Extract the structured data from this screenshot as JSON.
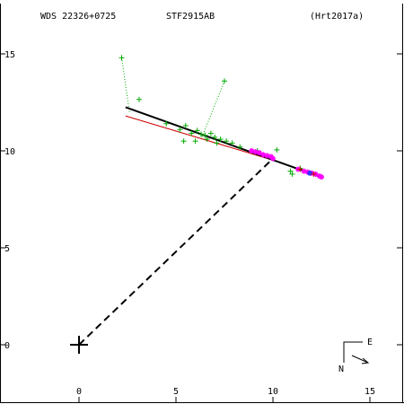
{
  "header": {
    "wds_id": "WDS 22326+0725",
    "discoverer": "STF2915AB",
    "reference": "(Hrt2017a)"
  },
  "compass": {
    "east_label": "E",
    "north_label": "N"
  },
  "colors": {
    "background": "#ffffff",
    "axes": "#000000",
    "orbit": "#000000",
    "alt_orbit": "#cc0000",
    "visual_obs": "#00aa00",
    "speckle_obs": "#ff00ff",
    "other_obs": "#3333ff",
    "residual_line": "#00aa00"
  },
  "chart_data": {
    "type": "scatter",
    "title": "",
    "xlabel": "",
    "ylabel": "",
    "xlim": [
      -4,
      17
    ],
    "ylim": [
      -3,
      17.5
    ],
    "x_tick_values": [
      0,
      5,
      10,
      15
    ],
    "x_tick_labels": [
      "0",
      "5",
      "10",
      "15"
    ],
    "y_tick_values": [
      0,
      5,
      10,
      15
    ],
    "y_tick_labels": [
      "0",
      "5",
      "10",
      "15"
    ],
    "primary": [
      0,
      0
    ],
    "orbit_line": [
      [
        2.4,
        12.25
      ],
      [
        12.6,
        8.6
      ]
    ],
    "alt_orbit_line": [
      [
        2.4,
        11.8
      ],
      [
        9.9,
        9.55
      ]
    ],
    "dashed_line": [
      [
        0,
        0
      ],
      [
        10.0,
        9.6
      ]
    ],
    "residual_lines": [
      [
        [
          2.2,
          14.8
        ],
        [
          2.6,
          12.0
        ]
      ],
      [
        [
          7.5,
          13.6
        ],
        [
          6.3,
          10.6
        ]
      ]
    ],
    "series": [
      {
        "marker": "plus",
        "points": [
          [
            2.2,
            14.8
          ],
          [
            3.1,
            12.65
          ],
          [
            4.5,
            11.4
          ],
          [
            5.2,
            11.1
          ],
          [
            5.5,
            11.3
          ],
          [
            5.4,
            10.5
          ],
          [
            5.8,
            10.9
          ],
          [
            6.0,
            10.5
          ],
          [
            6.1,
            11.05
          ],
          [
            6.3,
            10.85
          ],
          [
            6.5,
            10.8
          ],
          [
            6.6,
            10.6
          ],
          [
            6.8,
            10.9
          ],
          [
            7.0,
            10.7
          ],
          [
            7.1,
            10.4
          ],
          [
            7.3,
            10.6
          ],
          [
            7.5,
            13.6
          ],
          [
            7.6,
            10.5
          ],
          [
            7.9,
            10.4
          ],
          [
            8.3,
            10.2
          ],
          [
            9.2,
            10.0
          ],
          [
            10.2,
            10.05
          ],
          [
            10.9,
            8.95
          ],
          [
            11.0,
            8.8
          ],
          [
            11.4,
            9.1
          ]
        ]
      },
      {
        "marker": "star",
        "points": [
          [
            8.9,
            10.0
          ],
          [
            9.1,
            9.95
          ],
          [
            9.3,
            9.9
          ],
          [
            9.5,
            9.8
          ],
          [
            9.7,
            9.75
          ],
          [
            9.9,
            9.7
          ],
          [
            10.0,
            9.6
          ],
          [
            11.3,
            9.05
          ],
          [
            11.6,
            8.95
          ],
          [
            11.8,
            8.9
          ],
          [
            12.0,
            8.85
          ],
          [
            12.2,
            8.8
          ],
          [
            12.4,
            8.7
          ],
          [
            12.5,
            8.65
          ]
        ]
      },
      {
        "marker": "star",
        "points": [
          [
            11.9,
            8.85
          ]
        ]
      },
      {
        "marker": "plus",
        "points": [
          [
            11.4,
            9.05
          ],
          [
            12.1,
            8.8
          ]
        ]
      }
    ]
  }
}
